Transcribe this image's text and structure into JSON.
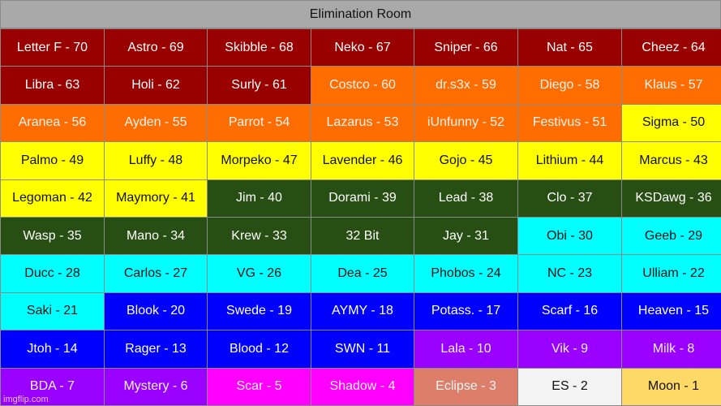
{
  "title": "Elimination Room",
  "watermark": "imgflip.com",
  "colors": {
    "darkred": "#990000",
    "orange": "#ff6d00",
    "yellow": "#ffff00",
    "darkgreen": "#274e13",
    "cyan": "#00ffff",
    "blue": "#0000ff",
    "purple": "#9900ff",
    "magenta": "#ff00ff",
    "salmon": "#dd7e6b",
    "white": "#f3f3f3",
    "gold": "#ffd966"
  },
  "cells": [
    {
      "label": "Letter F - 70",
      "color": "darkred"
    },
    {
      "label": "Astro - 69",
      "color": "darkred"
    },
    {
      "label": "Skibble - 68",
      "color": "darkred"
    },
    {
      "label": "Neko - 67",
      "color": "darkred"
    },
    {
      "label": "Sniper - 66",
      "color": "darkred"
    },
    {
      "label": "Nat - 65",
      "color": "darkred"
    },
    {
      "label": "Cheez - 64",
      "color": "darkred"
    },
    {
      "label": "Libra - 63",
      "color": "darkred"
    },
    {
      "label": "Holi - 62",
      "color": "darkred"
    },
    {
      "label": "Surly - 61",
      "color": "darkred"
    },
    {
      "label": "Costco - 60",
      "color": "orange"
    },
    {
      "label": "dr.s3x - 59",
      "color": "orange"
    },
    {
      "label": "Diego - 58",
      "color": "orange"
    },
    {
      "label": "Klaus - 57",
      "color": "orange"
    },
    {
      "label": "Aranea - 56",
      "color": "orange"
    },
    {
      "label": "Ayden - 55",
      "color": "orange"
    },
    {
      "label": "Parrot - 54",
      "color": "orange"
    },
    {
      "label": "Lazarus - 53",
      "color": "orange"
    },
    {
      "label": "iUnfunny - 52",
      "color": "orange"
    },
    {
      "label": "Festivus - 51",
      "color": "orange"
    },
    {
      "label": "Sigma - 50",
      "color": "yellow"
    },
    {
      "label": "Palmo - 49",
      "color": "yellow"
    },
    {
      "label": "Luffy - 48",
      "color": "yellow"
    },
    {
      "label": "Morpeko - 47",
      "color": "yellow"
    },
    {
      "label": "Lavender - 46",
      "color": "yellow"
    },
    {
      "label": "Gojo - 45",
      "color": "yellow"
    },
    {
      "label": "Lithium - 44",
      "color": "yellow"
    },
    {
      "label": "Marcus - 43",
      "color": "yellow"
    },
    {
      "label": "Legoman - 42",
      "color": "yellow"
    },
    {
      "label": "Maymory - 41",
      "color": "yellow"
    },
    {
      "label": "Jim - 40",
      "color": "darkgreen"
    },
    {
      "label": "Dorami - 39",
      "color": "darkgreen"
    },
    {
      "label": "Lead - 38",
      "color": "darkgreen"
    },
    {
      "label": "Clo - 37",
      "color": "darkgreen"
    },
    {
      "label": "KSDawg - 36",
      "color": "darkgreen"
    },
    {
      "label": "Wasp - 35",
      "color": "darkgreen"
    },
    {
      "label": "Mano - 34",
      "color": "darkgreen"
    },
    {
      "label": "Krew - 33",
      "color": "darkgreen"
    },
    {
      "label": "32 Bit",
      "color": "darkgreen"
    },
    {
      "label": "Jay - 31",
      "color": "darkgreen"
    },
    {
      "label": "Obi - 30",
      "color": "cyan"
    },
    {
      "label": "Geeb - 29",
      "color": "cyan"
    },
    {
      "label": "Ducc - 28",
      "color": "cyan"
    },
    {
      "label": "Carlos - 27",
      "color": "cyan"
    },
    {
      "label": "VG - 26",
      "color": "cyan"
    },
    {
      "label": "Dea - 25",
      "color": "cyan"
    },
    {
      "label": "Phobos - 24",
      "color": "cyan"
    },
    {
      "label": "NC - 23",
      "color": "cyan"
    },
    {
      "label": "Ulliam - 22",
      "color": "cyan"
    },
    {
      "label": "Saki - 21",
      "color": "cyan"
    },
    {
      "label": "Blook - 20",
      "color": "blue"
    },
    {
      "label": "Swede - 19",
      "color": "blue"
    },
    {
      "label": "AYMY - 18",
      "color": "blue"
    },
    {
      "label": "Potass. - 17",
      "color": "blue"
    },
    {
      "label": "Scarf - 16",
      "color": "blue"
    },
    {
      "label": "Heaven - 15",
      "color": "blue"
    },
    {
      "label": "Jtoh - 14",
      "color": "blue"
    },
    {
      "label": "Rager - 13",
      "color": "blue"
    },
    {
      "label": "Blood - 12",
      "color": "blue"
    },
    {
      "label": "SWN - 11",
      "color": "blue"
    },
    {
      "label": "Lala - 10",
      "color": "purple"
    },
    {
      "label": "Vik - 9",
      "color": "purple"
    },
    {
      "label": "Milk - 8",
      "color": "purple"
    },
    {
      "label": "BDA - 7",
      "color": "purple"
    },
    {
      "label": "Mystery - 6",
      "color": "purple"
    },
    {
      "label": "Scar - 5",
      "color": "magenta"
    },
    {
      "label": "Shadow - 4",
      "color": "magenta"
    },
    {
      "label": "Eclipse - 3",
      "color": "salmon"
    },
    {
      "label": "ES - 2",
      "color": "white"
    },
    {
      "label": "Moon - 1",
      "color": "gold"
    }
  ]
}
